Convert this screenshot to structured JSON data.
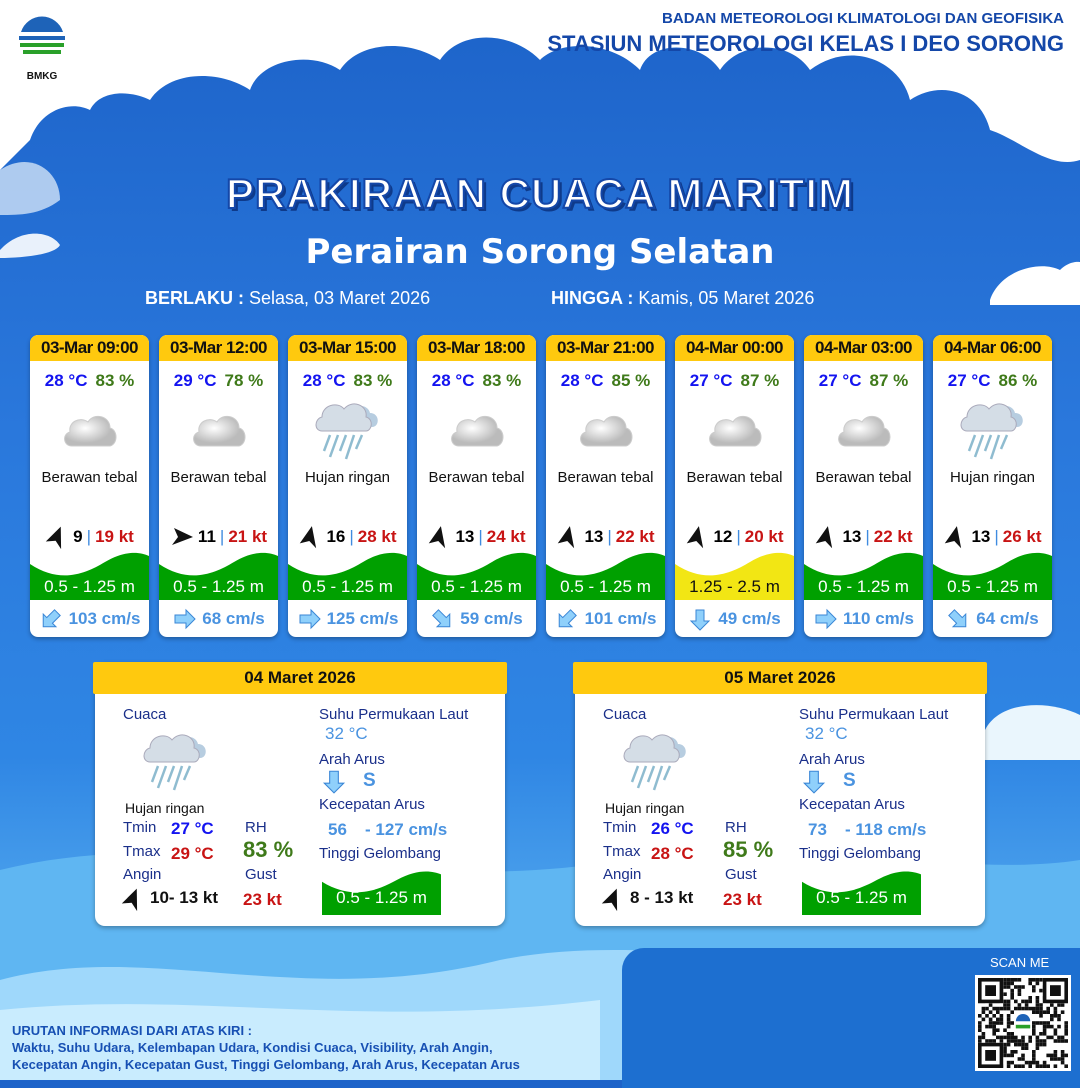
{
  "header": {
    "logo_text": "BMKG",
    "org_line1": "BADAN METEOROLOGI KLIMATOLOGI DAN GEOFISIKA",
    "org_line2": "STASIUN METEOROLOGI KELAS I DEO SORONG"
  },
  "title": "PRAKIRAAN CUACA MARITIM",
  "subtitle": "Perairan Sorong Selatan",
  "validity": {
    "from_label": "BERLAKU :",
    "from_value": "Selasa, 03 Maret 2026",
    "to_label": "HINGGA :",
    "to_value": "Kamis, 05 Maret 2026"
  },
  "colors": {
    "header_yellow": "#ffc90e",
    "wave_green": "#00a000",
    "wave_yellow": "#f2e614",
    "temp_blue": "#1414f0",
    "rh_green": "#3f7a1a",
    "gust_red": "#c81414",
    "current_blue": "#4a93e0"
  },
  "forecasts": [
    {
      "time": "03-Mar 09:00",
      "temp": "28 °C",
      "rh": "83 %",
      "icon": "cloud-icon",
      "weather": "Berawan tebal",
      "wind_dir_deg": 20,
      "wind": "9",
      "gust": "19 kt",
      "wave": "0.5 - 1.25 m",
      "wave_level": "green",
      "current_dir_deg": 225,
      "current": "103 cm/s"
    },
    {
      "time": "03-Mar 12:00",
      "temp": "29 °C",
      "rh": "78 %",
      "icon": "cloud-icon",
      "weather": "Berawan tebal",
      "wind_dir_deg": 90,
      "wind": "11",
      "gust": "21 kt",
      "wave": "0.5 - 1.25 m",
      "wave_level": "green",
      "current_dir_deg": 90,
      "current": "68 cm/s"
    },
    {
      "time": "03-Mar 15:00",
      "temp": "28 °C",
      "rh": "83 %",
      "icon": "rain-cloud-icon",
      "weather": "Hujan ringan",
      "wind_dir_deg": 10,
      "wind": "16",
      "gust": "28 kt",
      "wave": "0.5 - 1.25 m",
      "wave_level": "green",
      "current_dir_deg": 90,
      "current": "125 cm/s"
    },
    {
      "time": "03-Mar 18:00",
      "temp": "28 °C",
      "rh": "83 %",
      "icon": "cloud-icon",
      "weather": "Berawan tebal",
      "wind_dir_deg": 10,
      "wind": "13",
      "gust": "24 kt",
      "wave": "0.5 - 1.25 m",
      "wave_level": "green",
      "current_dir_deg": 135,
      "current": "59 cm/s"
    },
    {
      "time": "03-Mar 21:00",
      "temp": "28 °C",
      "rh": "85 %",
      "icon": "cloud-icon",
      "weather": "Berawan tebal",
      "wind_dir_deg": 10,
      "wind": "13",
      "gust": "22 kt",
      "wave": "0.5 - 1.25 m",
      "wave_level": "green",
      "current_dir_deg": 225,
      "current": "101 cm/s"
    },
    {
      "time": "04-Mar 00:00",
      "temp": "27 °C",
      "rh": "87 %",
      "icon": "cloud-icon",
      "weather": "Berawan tebal",
      "wind_dir_deg": 10,
      "wind": "12",
      "gust": "20 kt",
      "wave": "1.25 - 2.5 m",
      "wave_level": "yellow",
      "current_dir_deg": 180,
      "current": "49 cm/s"
    },
    {
      "time": "04-Mar 03:00",
      "temp": "27 °C",
      "rh": "87 %",
      "icon": "cloud-icon",
      "weather": "Berawan tebal",
      "wind_dir_deg": 10,
      "wind": "13",
      "gust": "22 kt",
      "wave": "0.5 - 1.25 m",
      "wave_level": "green",
      "current_dir_deg": 90,
      "current": "110 cm/s"
    },
    {
      "time": "04-Mar 06:00",
      "temp": "27 °C",
      "rh": "86 %",
      "icon": "rain-cloud-icon",
      "weather": "Hujan ringan",
      "wind_dir_deg": 10,
      "wind": "13",
      "gust": "26 kt",
      "wave": "0.5 - 1.25 m",
      "wave_level": "green",
      "current_dir_deg": 135,
      "current": "64 cm/s"
    }
  ],
  "daily": [
    {
      "date": "04 Maret 2026",
      "weather_label": "Cuaca",
      "weather": "Hujan ringan",
      "tmin_label": "Tmin",
      "tmin": "27 °C",
      "tmax_label": "Tmax",
      "tmax": "29 °C",
      "rh_label": "RH",
      "rh": "83 %",
      "wind_label": "Angin",
      "wind": "10- 13 kt",
      "wind_dir_deg": 20,
      "gust_label": "Gust",
      "gust": "23 kt",
      "sst_label": "Suhu Permukaan Laut",
      "sst": "32 °C",
      "current_dir_label": "Arah Arus",
      "current_dir": "S",
      "current_speed_label": "Kecepatan Arus",
      "current_min": "56",
      "current_max": "- 127 cm/s",
      "wave_label": "Tinggi Gelombang",
      "wave": "0.5 - 1.25 m"
    },
    {
      "date": "05 Maret 2026",
      "weather_label": "Cuaca",
      "weather": "Hujan ringan",
      "tmin_label": "Tmin",
      "tmin": "26 °C",
      "tmax_label": "Tmax",
      "tmax": "28 °C",
      "rh_label": "RH",
      "rh": "85 %",
      "wind_label": "Angin",
      "wind": "8  - 13 kt",
      "wind_dir_deg": 20,
      "gust_label": "Gust",
      "gust": "23 kt",
      "sst_label": "Suhu Permukaan Laut",
      "sst": "32 °C",
      "current_dir_label": "Arah Arus",
      "current_dir": "S",
      "current_speed_label": "Kecepatan Arus",
      "current_min": "73",
      "current_max": "- 118 cm/s",
      "wave_label": "Tinggi Gelombang",
      "wave": "0.5 - 1.25 m"
    }
  ],
  "footer": {
    "heading": "URUTAN INFORMASI DARI ATAS KIRI :",
    "line1": "Waktu, Suhu Udara, Kelembapan Udara, Kondisi Cuaca, Visibility, Arah Angin,",
    "line2": "Kecepatan Angin, Kecepatan Gust, Tinggi Gelombang, Arah Arus, Kecepatan Arus",
    "scan_label": "SCAN ME"
  }
}
